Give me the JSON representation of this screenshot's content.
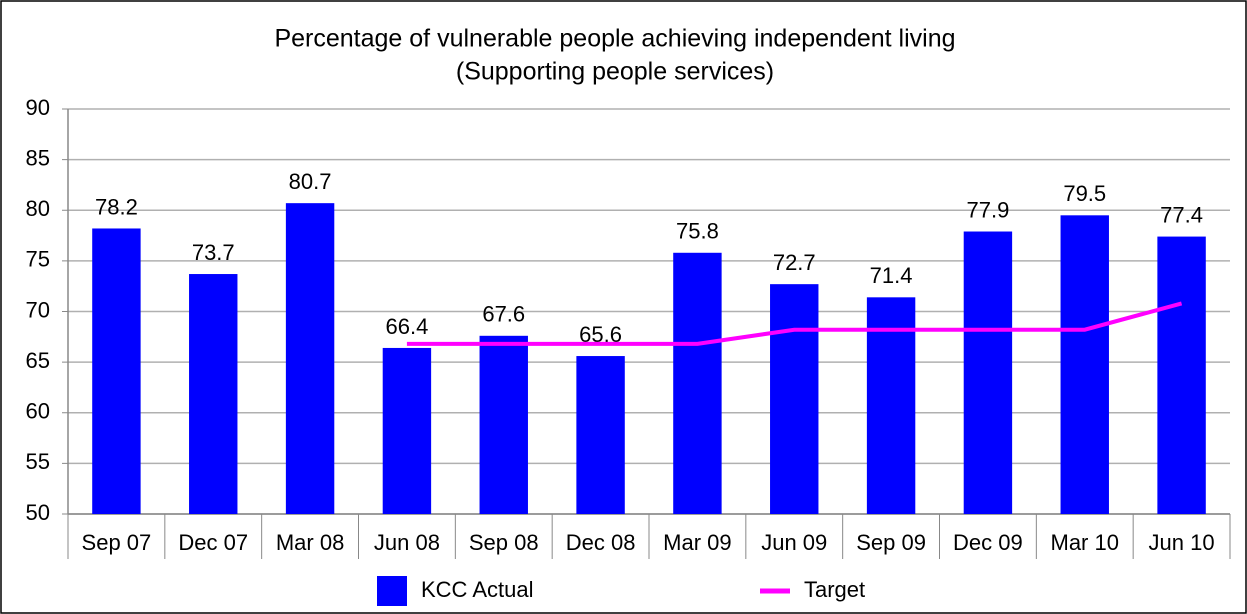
{
  "chart_data": {
    "type": "bar",
    "title": "Percentage of vulnerable people achieving independent living",
    "subtitle": "(Supporting people services)",
    "categories": [
      "Sep 07",
      "Dec 07",
      "Mar 08",
      "Jun 08",
      "Sep 08",
      "Dec 08",
      "Mar 09",
      "Jun 09",
      "Sep 09",
      "Dec 09",
      "Mar 10",
      "Jun 10"
    ],
    "series": [
      {
        "name": "KCC Actual",
        "color": "#0000ff",
        "type": "bar",
        "values": [
          78.2,
          73.7,
          80.7,
          66.4,
          67.6,
          65.6,
          75.8,
          72.7,
          71.4,
          77.9,
          79.5,
          77.4
        ]
      },
      {
        "name": "Target",
        "color": "#ff00ff",
        "type": "line",
        "values": [
          null,
          null,
          null,
          66.8,
          66.8,
          66.8,
          66.8,
          68.2,
          68.2,
          68.2,
          68.2,
          70.8
        ]
      }
    ],
    "ylim": [
      50,
      90
    ],
    "yticks": [
      50,
      55,
      60,
      65,
      70,
      75,
      80,
      85,
      90
    ],
    "grid": true
  }
}
